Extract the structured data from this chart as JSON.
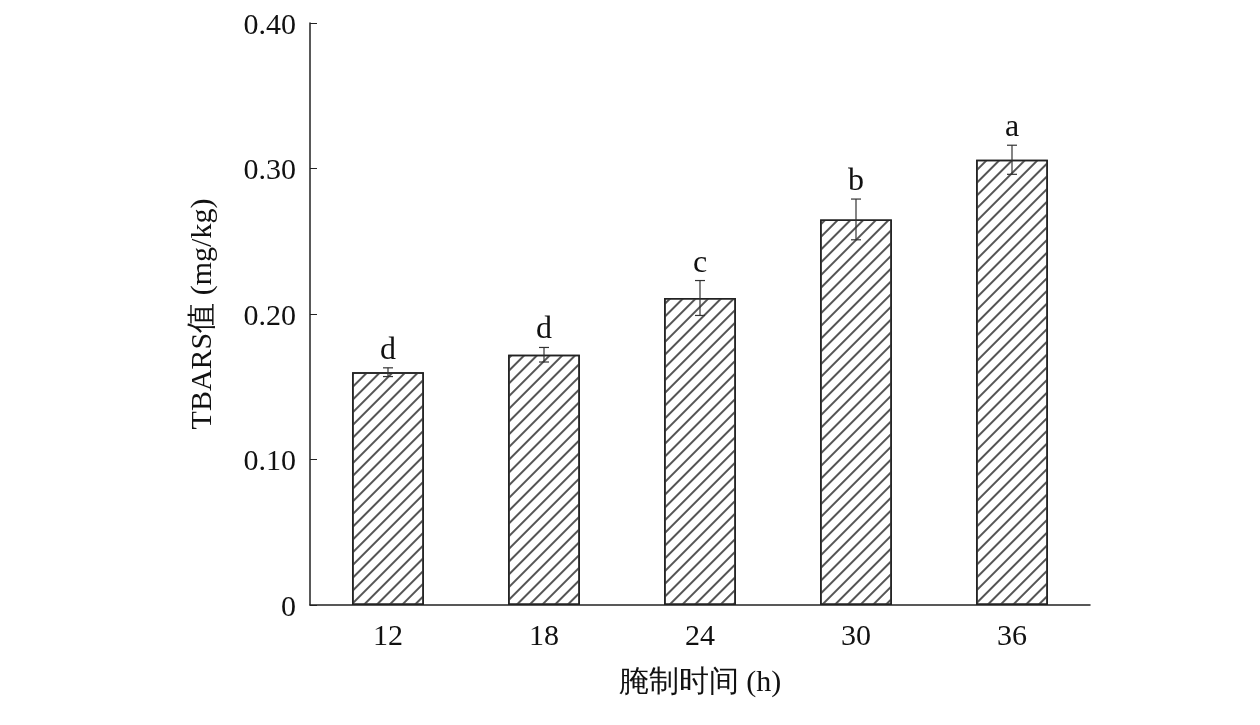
{
  "chart_data": {
    "type": "bar",
    "xlabel": "腌制时间 (h)",
    "ylabel": "TBARS值 (mg/kg)",
    "categories": [
      "12",
      "18",
      "24",
      "30",
      "36"
    ],
    "values": [
      0.16,
      0.172,
      0.211,
      0.265,
      0.306
    ],
    "errors": [
      0.003,
      0.005,
      0.012,
      0.014,
      0.01
    ],
    "color": "#ffffff",
    "ylim": [
      0,
      0.4
    ],
    "yticks": [
      0,
      {
        "value": 0.1,
        "label": "0.10"
      },
      {
        "value": 0.2,
        "label": "0.20"
      },
      {
        "value": 0.3,
        "label": "0.30"
      },
      {
        "value": 0.4,
        "label": "0.40"
      }
    ],
    "grid": false,
    "annotations": [
      {
        "text": "d",
        "x": "12",
        "y": 0.163
      },
      {
        "text": "d",
        "x": "18",
        "y": 0.177
      },
      {
        "text": "c",
        "x": "24",
        "y": 0.223
      },
      {
        "text": "b",
        "x": "30",
        "y": 0.279
      },
      {
        "text": "a",
        "x": "36",
        "y": 0.316
      }
    ]
  }
}
